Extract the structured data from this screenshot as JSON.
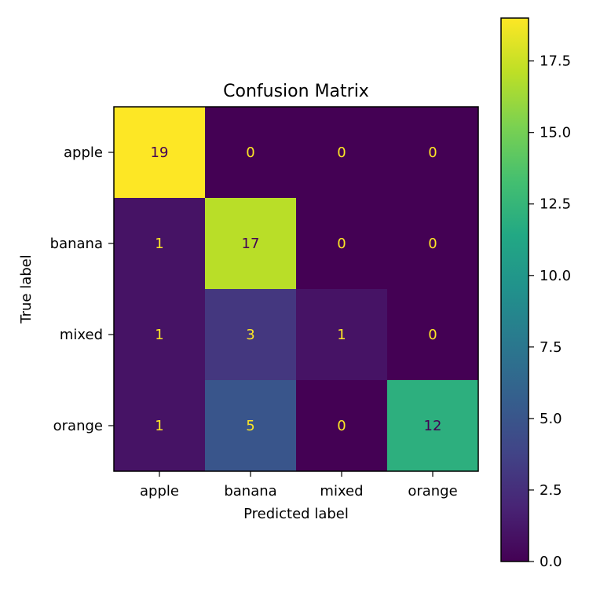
{
  "chart_data": {
    "type": "heatmap",
    "title": "Confusion Matrix",
    "xlabel": "Predicted label",
    "ylabel": "True label",
    "x_categories": [
      "apple",
      "banana",
      "mixed",
      "orange"
    ],
    "y_categories": [
      "apple",
      "banana",
      "mixed",
      "orange"
    ],
    "values": [
      [
        19,
        0,
        0,
        0
      ],
      [
        1,
        17,
        0,
        0
      ],
      [
        1,
        3,
        1,
        0
      ],
      [
        1,
        5,
        0,
        12
      ]
    ],
    "colormap": "viridis",
    "colorbar": {
      "range": [
        0,
        19
      ],
      "ticks": [
        0,
        2.5,
        5,
        7.5,
        10,
        12.5,
        15,
        17.5
      ],
      "tick_labels": [
        "0.0",
        "2.5",
        "5.0",
        "7.5",
        "10.0",
        "12.5",
        "15.0",
        "17.5"
      ]
    },
    "annotation_colors": {
      "on_dark": "#fde725",
      "on_light": "#440154"
    }
  }
}
